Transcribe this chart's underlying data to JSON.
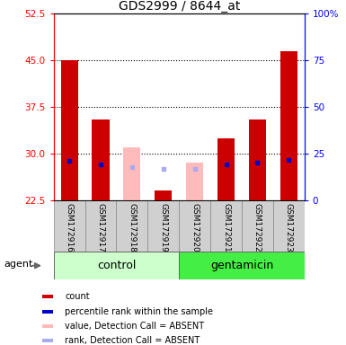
{
  "title": "GDS2999 / 8644_at",
  "samples": [
    "GSM172916",
    "GSM172917",
    "GSM172918",
    "GSM172919",
    "GSM172920",
    "GSM172921",
    "GSM172922",
    "GSM172923"
  ],
  "ylim_left": [
    22.5,
    52.5
  ],
  "ylim_right": [
    0,
    100
  ],
  "yticks_left": [
    22.5,
    30.0,
    37.5,
    45.0,
    52.5
  ],
  "yticks_right": [
    0,
    25,
    50,
    75,
    100
  ],
  "baseline": 22.5,
  "red_bar_tops": [
    45.0,
    35.5,
    null,
    24.1,
    null,
    32.5,
    35.5,
    46.5
  ],
  "pink_bar_tops": [
    null,
    null,
    31.0,
    null,
    28.5,
    null,
    null,
    null
  ],
  "blue_sq_vals": [
    28.8,
    28.3,
    null,
    null,
    null,
    28.3,
    28.6,
    29.0
  ],
  "light_blue_sq_vals": [
    null,
    null,
    27.8,
    27.5,
    27.5,
    null,
    null,
    null
  ],
  "bar_width": 0.55,
  "red_color": "#cc0000",
  "pink_color": "#ffbbbb",
  "blue_color": "#0000cc",
  "light_blue_color": "#aaaaee",
  "group_light_color": "#ccffcc",
  "group_dark_color": "#44ee44",
  "gray_bg": "#d0d0d0",
  "legend_items": [
    {
      "label": "count",
      "color": "#cc0000"
    },
    {
      "label": "percentile rank within the sample",
      "color": "#0000cc"
    },
    {
      "label": "value, Detection Call = ABSENT",
      "color": "#ffbbbb"
    },
    {
      "label": "rank, Detection Call = ABSENT",
      "color": "#aaaaee"
    }
  ],
  "title_fontsize": 10,
  "tick_fontsize": 7.5,
  "sample_fontsize": 6.5,
  "group_fontsize": 9,
  "legend_fontsize": 7,
  "agent_fontsize": 8
}
